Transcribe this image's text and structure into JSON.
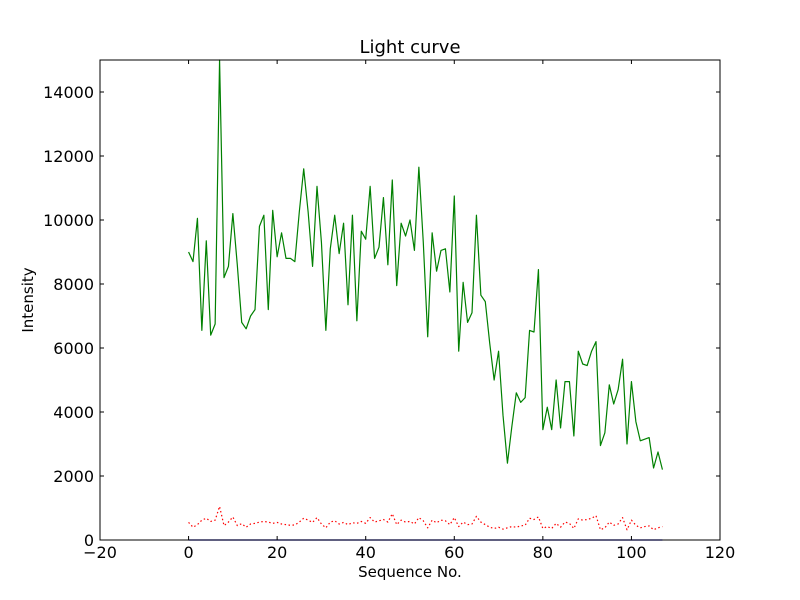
{
  "chart_data": {
    "type": "line",
    "title": "Light curve",
    "xlabel": "Sequence No.",
    "ylabel": "Intensity",
    "xlim": [
      -20,
      120
    ],
    "ylim": [
      0,
      15000
    ],
    "grid": false,
    "x_ticks": [
      -20,
      0,
      20,
      40,
      60,
      80,
      100,
      120
    ],
    "x_tick_labels": [
      "−20",
      "0",
      "20",
      "40",
      "60",
      "80",
      "100",
      "120"
    ],
    "y_ticks": [
      0,
      2000,
      4000,
      6000,
      8000,
      10000,
      12000,
      14000
    ],
    "y_tick_labels": [
      "0",
      "2000",
      "4000",
      "6000",
      "8000",
      "10000",
      "12000",
      "14000"
    ],
    "series": [
      {
        "color": "#008000",
        "style": "solid",
        "x": [
          0,
          1,
          2,
          3,
          4,
          5,
          6,
          7,
          8,
          9,
          10,
          11,
          12,
          13,
          14,
          15,
          16,
          17,
          18,
          19,
          20,
          21,
          22,
          23,
          24,
          25,
          26,
          27,
          28,
          29,
          30,
          31,
          32,
          33,
          34,
          35,
          36,
          37,
          38,
          39,
          40,
          41,
          42,
          43,
          44,
          45,
          46,
          47,
          48,
          49,
          50,
          51,
          52,
          53,
          54,
          55,
          56,
          57,
          58,
          59,
          60,
          61,
          62,
          63,
          64,
          65,
          66,
          67,
          68,
          69,
          70,
          71,
          72,
          73,
          74,
          75,
          76,
          77,
          78,
          79,
          80,
          81,
          82,
          83,
          84,
          85,
          86,
          87,
          88,
          89,
          90,
          91,
          92,
          93,
          94,
          95,
          96,
          97,
          98,
          99,
          100,
          101,
          102,
          103,
          104,
          105,
          106,
          107
        ],
        "y": [
          9000,
          8700,
          10050,
          6550,
          9350,
          6400,
          6750,
          15000,
          8200,
          8550,
          10200,
          8600,
          6800,
          6600,
          7000,
          7200,
          9800,
          10150,
          7200,
          10300,
          8850,
          9600,
          8800,
          8800,
          8700,
          10250,
          11600,
          10250,
          8550,
          11050,
          9300,
          6550,
          9100,
          10150,
          8950,
          9900,
          7350,
          10150,
          6850,
          9650,
          9400,
          11050,
          8800,
          9150,
          10700,
          8600,
          11250,
          7950,
          9900,
          9500,
          10000,
          9050,
          11650,
          9300,
          6350,
          9600,
          8400,
          9050,
          9100,
          7750,
          10750,
          5900,
          8050,
          6800,
          7100,
          10150,
          7650,
          7450,
          6150,
          5000,
          5900,
          3900,
          2400,
          3550,
          4600,
          4300,
          4450,
          6550,
          6500,
          8450,
          3450,
          4150,
          3450,
          5000,
          3500,
          4950,
          4950,
          3250,
          5900,
          5500,
          5450,
          5900,
          6200,
          2950,
          3350,
          4850,
          4250,
          4700,
          5650,
          3000,
          4950,
          3700,
          3100,
          3150,
          3200,
          2250,
          2750,
          2200
        ]
      },
      {
        "color": "#ff0000",
        "style": "dotted",
        "x": [
          0,
          1,
          2,
          3,
          4,
          5,
          6,
          7,
          8,
          9,
          10,
          11,
          12,
          13,
          14,
          15,
          16,
          17,
          18,
          19,
          20,
          21,
          22,
          23,
          24,
          25,
          26,
          27,
          28,
          29,
          30,
          31,
          32,
          33,
          34,
          35,
          36,
          37,
          38,
          39,
          40,
          41,
          42,
          43,
          44,
          45,
          46,
          47,
          48,
          49,
          50,
          51,
          52,
          53,
          54,
          55,
          56,
          57,
          58,
          59,
          60,
          61,
          62,
          63,
          64,
          65,
          66,
          67,
          68,
          69,
          70,
          71,
          72,
          73,
          74,
          75,
          76,
          77,
          78,
          79,
          80,
          81,
          82,
          83,
          84,
          85,
          86,
          87,
          88,
          89,
          90,
          91,
          92,
          93,
          94,
          95,
          96,
          97,
          98,
          99,
          100,
          101,
          102,
          103,
          104,
          105,
          106,
          107
        ],
        "y": [
          550,
          400,
          480,
          620,
          680,
          580,
          620,
          1050,
          450,
          560,
          720,
          450,
          510,
          400,
          500,
          520,
          560,
          580,
          560,
          520,
          550,
          500,
          480,
          460,
          470,
          560,
          680,
          620,
          550,
          700,
          500,
          380,
          560,
          600,
          500,
          550,
          480,
          540,
          520,
          580,
          520,
          700,
          560,
          600,
          640,
          560,
          820,
          480,
          620,
          560,
          580,
          500,
          700,
          600,
          380,
          620,
          540,
          620,
          600,
          480,
          700,
          420,
          560,
          480,
          500,
          740,
          560,
          480,
          400,
          360,
          400,
          340,
          380,
          420,
          400,
          440,
          460,
          680,
          640,
          720,
          360,
          420,
          360,
          520,
          400,
          560,
          520,
          360,
          660,
          620,
          640,
          680,
          760,
          320,
          380,
          560,
          460,
          500,
          700,
          320,
          620,
          460,
          380,
          420,
          440,
          320,
          380,
          420
        ]
      },
      {
        "color": "#0000ff",
        "style": "solid",
        "x": [
          0,
          1,
          2,
          3,
          4,
          5,
          6,
          7,
          8,
          9,
          10,
          11,
          12,
          13,
          14,
          15,
          16,
          17,
          18,
          19,
          20,
          21,
          22,
          23,
          24,
          25,
          26,
          27,
          28,
          29,
          30,
          31,
          32,
          33,
          34,
          35,
          36,
          37,
          38,
          39,
          40,
          41,
          42,
          43,
          44,
          45,
          46,
          47,
          48,
          49,
          50,
          51,
          52,
          53,
          54,
          55,
          56,
          57,
          58,
          59,
          60,
          61,
          62,
          63,
          64,
          65,
          66,
          67,
          68,
          69,
          70,
          71,
          72,
          73,
          74,
          75,
          76,
          77,
          78,
          79,
          80,
          81,
          82,
          83,
          84,
          85,
          86,
          87,
          88,
          89,
          90,
          91,
          92,
          93,
          94,
          95,
          96,
          97,
          98,
          99,
          100,
          101,
          102,
          103,
          104,
          105,
          106,
          107
        ],
        "y": [
          0,
          0,
          0,
          0,
          0,
          0,
          0,
          0,
          0,
          0,
          0,
          0,
          0,
          0,
          0,
          0,
          0,
          0,
          0,
          0,
          0,
          0,
          0,
          0,
          0,
          0,
          0,
          0,
          0,
          0,
          0,
          0,
          0,
          0,
          0,
          0,
          0,
          0,
          0,
          0,
          0,
          0,
          0,
          0,
          0,
          0,
          0,
          0,
          0,
          0,
          0,
          0,
          0,
          0,
          0,
          0,
          0,
          0,
          0,
          0,
          0,
          0,
          0,
          0,
          0,
          0,
          0,
          0,
          0,
          0,
          0,
          0,
          0,
          0,
          0,
          0,
          0,
          0,
          0,
          0,
          0,
          0,
          0,
          0,
          0,
          0,
          0,
          0,
          0,
          0,
          0,
          0,
          0,
          0,
          0,
          0,
          0,
          0,
          0,
          0,
          0,
          0,
          0,
          0,
          0,
          0,
          0,
          0
        ]
      }
    ]
  }
}
